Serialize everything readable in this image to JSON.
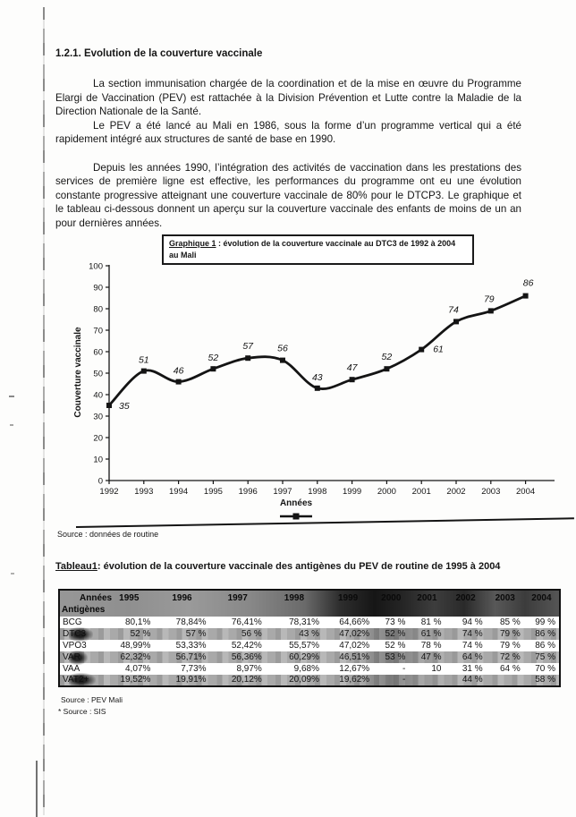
{
  "doc": {
    "heading": "1.2.1. Evolution de la couverture vaccinale",
    "paragraphs": [
      "La section immunisation chargée de la coordination et de la mise en œuvre du Programme Elargi de Vaccination (PEV) est rattachée à la Division Prévention et Lutte contre la Maladie de la Direction Nationale de la Santé.",
      "Le PEV a été lancé au Mali en 1986, sous la forme d’un programme vertical qui a été rapidement intégré aux structures de santé de base en 1990.",
      "Depuis les années 1990, l’intégration des activités de vaccination dans les prestations des services de première ligne est effective, les performances du programme ont eu une évolution constante progressive atteignant une couverture vaccinale de 80% pour le DTCP3. Le graphique et le tableau ci-dessous donnent un aperçu sur la couverture vaccinale des enfants de moins de un an pour dernières années."
    ]
  },
  "chart": {
    "caption_label": "Graphique 1",
    "caption_rest": " : évolution de la couverture vaccinale au DTC3 de 1992 à 2004 au Mali"
  },
  "chart_data": {
    "type": "line",
    "x": [
      1992,
      1993,
      1994,
      1995,
      1996,
      1997,
      1998,
      1999,
      2000,
      2001,
      2002,
      2003,
      2004
    ],
    "series": [
      {
        "name": "DTC3",
        "values": [
          35,
          51,
          46,
          52,
          57,
          56,
          43,
          47,
          52,
          61,
          74,
          79,
          86
        ]
      }
    ],
    "title": "Graphique 1 : évolution de la couverture vaccinale au DTC3 de 1992 à 2004 au Mali",
    "xlabel": "Années",
    "ylabel": "Couverture vaccinale",
    "ylim": [
      0,
      100
    ],
    "ytick_step": 10,
    "grid": false,
    "legend_position": "bottom",
    "point_labels_visible": true
  },
  "sources": {
    "chart": "Source : données de routine",
    "table": "Source : PEV  Mali",
    "table2": "* Source : SIS"
  },
  "table": {
    "title_label": "Tableau1",
    "title_rest": ": évolution de la couverture vaccinale des antigènes du PEV de routine de 1995 à 2004",
    "corner_top": "Années",
    "corner_bottom": "Antigènes",
    "years": [
      "1995",
      "1996",
      "1997",
      "1998",
      "1999",
      "2000",
      "2001",
      "2002",
      "2003",
      "2004"
    ],
    "rows": [
      {
        "label": "BCG",
        "shaded": false,
        "values": [
          "80,1%",
          "78,84%",
          "76,41%",
          "78,31%",
          "64,66%",
          "73 %",
          "81 %",
          "94 %",
          "85 %",
          "99 %"
        ]
      },
      {
        "label": "DTC3",
        "shaded": true,
        "values": [
          "52 %",
          "57 %",
          "56 %",
          "43 %",
          "47,02%",
          "52 %",
          "61 %",
          "74 %",
          "79 %",
          "86 %"
        ]
      },
      {
        "label": "VPO3",
        "shaded": false,
        "values": [
          "48,99%",
          "53,33%",
          "52,42%",
          "55,57%",
          "47,02%",
          "52 %",
          "78 %",
          "74 %",
          "79 %",
          "86 %"
        ]
      },
      {
        "label": "VAR",
        "shaded": true,
        "values": [
          "62,32%",
          "56,71%",
          "56,36%",
          "60,29%",
          "46,51%",
          "53 %",
          "47 %",
          "64 %",
          "72 %",
          "75 %"
        ]
      },
      {
        "label": "VAA",
        "shaded": false,
        "values": [
          "4,07%",
          "7,73%",
          "8,97%",
          "9,68%",
          "12,67%",
          "-",
          "10",
          "31 %",
          "64 %",
          "70 %"
        ]
      },
      {
        "label": "VAT2+",
        "shaded": true,
        "values": [
          "19,52%",
          "19,91%",
          "20,12%",
          "20,09%",
          "19,62%",
          "-",
          "",
          "44 %",
          "",
          "58 %"
        ]
      }
    ]
  }
}
